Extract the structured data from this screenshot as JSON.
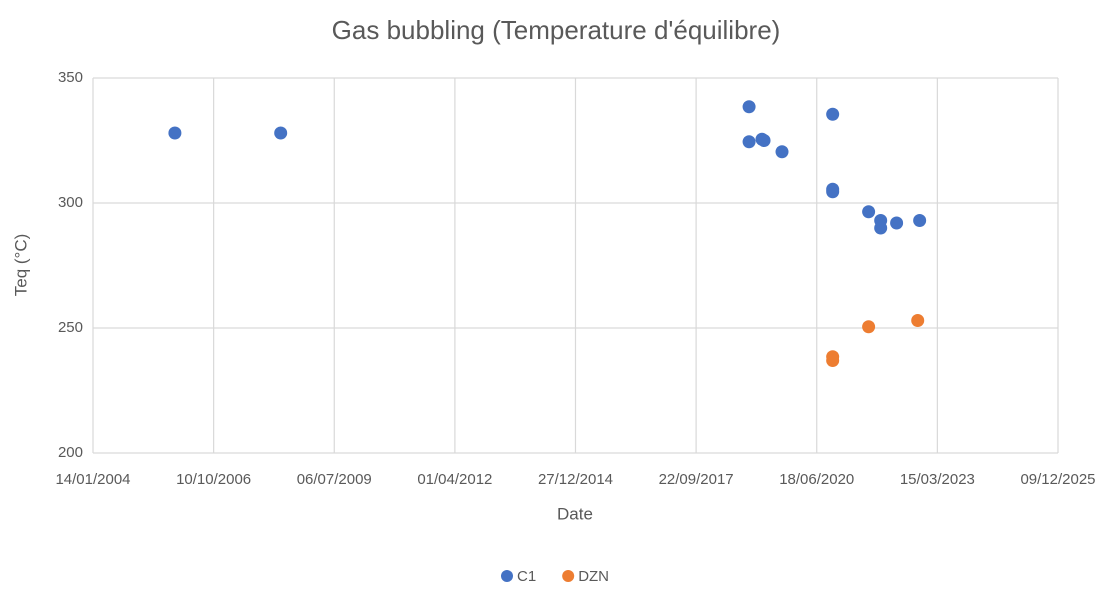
{
  "chart_data": {
    "type": "scatter",
    "title": "Gas bubbling (Temperature d'équilibre)",
    "x_label": "Date",
    "y_label": "Teq (°C)",
    "xlim": [
      "2004-01-14",
      "2025-12-09"
    ],
    "xticks": [
      {
        "value": "2004-01-14",
        "label": "14/01/2004"
      },
      {
        "value": "2006-10-10",
        "label": "10/10/2006"
      },
      {
        "value": "2009-07-06",
        "label": "06/07/2009"
      },
      {
        "value": "2012-04-01",
        "label": "01/04/2012"
      },
      {
        "value": "2014-12-27",
        "label": "27/12/2014"
      },
      {
        "value": "2017-09-22",
        "label": "22/09/2017"
      },
      {
        "value": "2020-06-18",
        "label": "18/06/2020"
      },
      {
        "value": "2023-03-15",
        "label": "15/03/2023"
      },
      {
        "value": "2025-12-09",
        "label": "09/12/2025"
      }
    ],
    "ylim": [
      200,
      350
    ],
    "yticks": [
      200,
      250,
      300,
      350
    ],
    "grid": true,
    "series": [
      {
        "name": "C1",
        "color": "#4472c4",
        "x": [
          "2005-11-23",
          "2008-04-18",
          "2018-12-05",
          "2018-12-05",
          "2019-03-22",
          "2019-04-08",
          "2019-09-04",
          "2020-10-28",
          "2020-10-28",
          "2020-10-28",
          "2021-08-22",
          "2021-11-30",
          "2021-11-30",
          "2022-04-11",
          "2022-10-19"
        ],
        "values": [
          328,
          328,
          338.5,
          324.5,
          325.5,
          325,
          320.5,
          335.5,
          305.5,
          304.5,
          296.5,
          293,
          290,
          292,
          293
        ]
      },
      {
        "name": "DZN",
        "color": "#ed7d31",
        "x": [
          "2020-10-28",
          "2020-10-28",
          "2021-08-22",
          "2022-10-03"
        ],
        "values": [
          238.5,
          237,
          250.5,
          253
        ]
      }
    ]
  }
}
